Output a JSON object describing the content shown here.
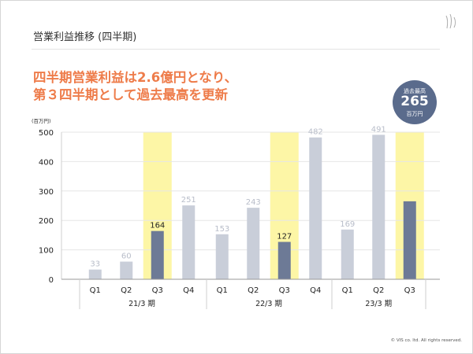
{
  "slide": {
    "title": "営業利益推移 (四半期)",
    "headline_line1": "四半期営業利益は2.6億円となり、",
    "headline_line2": "第３四半期として過去最高を更新",
    "copyright": "© VIS co. ltd. All rights reserved."
  },
  "badge": {
    "label": "過去最高",
    "value": "265",
    "unit": "百万円"
  },
  "colors": {
    "bar_light": "#c9ced9",
    "bar_dark": "#6d7a96",
    "highlight": "#fdf6a6",
    "headline": "#ee7c4a",
    "badge": "#5a6b8c"
  },
  "chart_data": {
    "type": "bar",
    "title": "営業利益推移 (四半期)",
    "unit_label": "(百万円)",
    "ylim": [
      0,
      500
    ],
    "yticks": [
      0,
      100,
      200,
      300,
      400,
      500
    ],
    "groups": [
      {
        "label": "21/3 期",
        "categories": [
          "Q1",
          "Q2",
          "Q3",
          "Q4"
        ],
        "values": [
          33,
          60,
          164,
          251
        ],
        "value_labels": [
          "33",
          "60",
          "164",
          "251"
        ]
      },
      {
        "label": "22/3 期",
        "categories": [
          "Q1",
          "Q2",
          "Q3",
          "Q4"
        ],
        "values": [
          153,
          243,
          127,
          482
        ],
        "value_labels": [
          "153",
          "243",
          "127",
          "482"
        ]
      },
      {
        "label": "23/3 期",
        "categories": [
          "Q1",
          "Q2",
          "Q3"
        ],
        "values": [
          169,
          491,
          265
        ],
        "value_labels": [
          "169",
          "491",
          ""
        ]
      }
    ],
    "highlight_category": "Q3"
  }
}
